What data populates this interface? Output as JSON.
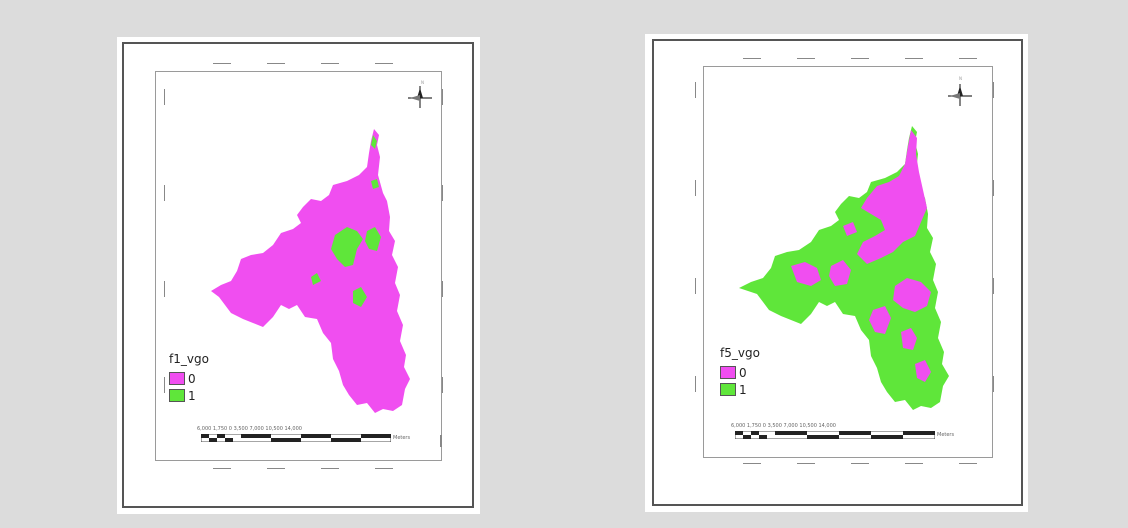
{
  "colors": {
    "class0": "#f04ef0",
    "class1": "#5fe63a",
    "background": "#dcdcdc"
  },
  "maps": [
    {
      "legend_title": "f1_vgo",
      "legend": [
        {
          "label": "0",
          "color": "#f04ef0"
        },
        {
          "label": "1",
          "color": "#5fe63a"
        }
      ],
      "scale_labels": "6,000  1,750  0       3,500       7,000       10,500      14,000",
      "scale_unit": "Meters",
      "north_label": "N",
      "dominant_class": "0"
    },
    {
      "legend_title": "f5_vgo",
      "legend": [
        {
          "label": "0",
          "color": "#f04ef0"
        },
        {
          "label": "1",
          "color": "#5fe63a"
        }
      ],
      "scale_labels": "6,000  1,750  0       3,500       7,000       10,500      14,000",
      "scale_unit": "Meters",
      "north_label": "N",
      "dominant_class": "1"
    }
  ]
}
